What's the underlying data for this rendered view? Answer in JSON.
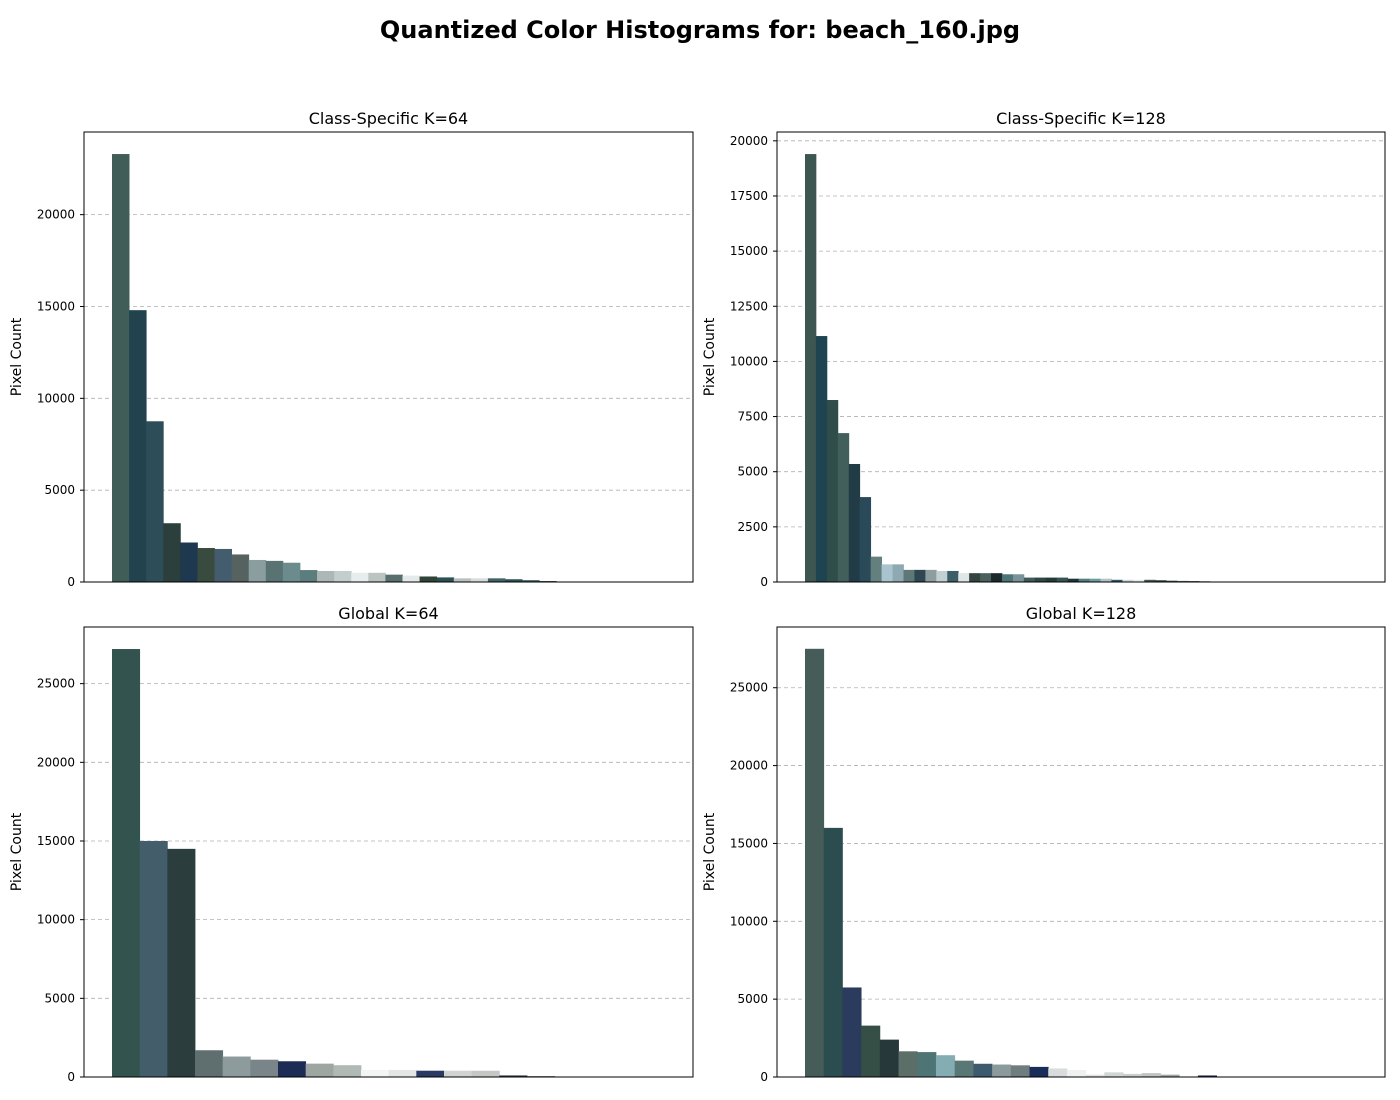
{
  "title": "Quantized Color Histograms for: beach_160.jpg",
  "chart_data": [
    {
      "type": "bar",
      "title": "Class-Specific K=64",
      "ylabel": "Pixel Count",
      "xlabel": "",
      "ylim": [
        0,
        24500
      ],
      "yticks": [
        0,
        5000,
        10000,
        15000,
        20000
      ],
      "grid": "y-dashed",
      "x_slots": 34,
      "values": [
        23300,
        14800,
        8750,
        3200,
        2150,
        1850,
        1800,
        1500,
        1200,
        1150,
        1050,
        650,
        600,
        600,
        500,
        500,
        400,
        350,
        300,
        250,
        200,
        200,
        200,
        150,
        100,
        50
      ],
      "colors": [
        "#415d58",
        "#22434d",
        "#2d4e59",
        "#2b3f3c",
        "#1e3850",
        "#394a3f",
        "#445d6e",
        "#56625f",
        "#8a9d9f",
        "#587372",
        "#6c8b8d",
        "#5b7d7e",
        "#adb8b6",
        "#c2cecd",
        "#e7eced",
        "#bbc4c1",
        "#57706f",
        "#e4eaea",
        "#2f4338",
        "#2a4f55",
        "#b9c1c0",
        "#d4dcdc",
        "#416268",
        "#2b5052",
        "#385a5a",
        "#2c3c3a"
      ]
    },
    {
      "type": "bar",
      "title": "Class-Specific K=128",
      "ylabel": "Pixel Count",
      "xlabel": "",
      "ylim": [
        0,
        20400
      ],
      "yticks": [
        0,
        2500,
        5000,
        7500,
        10000,
        12500,
        15000,
        17500,
        20000
      ],
      "grid": "y-dashed",
      "x_slots": 53,
      "values": [
        19400,
        11150,
        8250,
        6750,
        5350,
        3850,
        1150,
        800,
        800,
        550,
        550,
        550,
        500,
        500,
        400,
        400,
        400,
        400,
        350,
        350,
        200,
        200,
        200,
        200,
        150,
        150,
        150,
        150,
        100,
        100,
        100,
        100,
        80,
        60,
        50,
        40,
        30,
        20
      ],
      "colors": [
        "#3d5652",
        "#1d4450",
        "#2f4d49",
        "#435f5b",
        "#213c46",
        "#2a4a5a",
        "#637f7e",
        "#a9c4cf",
        "#8fa9b2",
        "#5e7878",
        "#2f4752",
        "#8e9da0",
        "#c2d0d2",
        "#3b5f66",
        "#dfe6e8",
        "#34443f",
        "#49605e",
        "#1c2a2c",
        "#4d7478",
        "#7a9399",
        "#3e5a5a",
        "#2d4748",
        "#253a37",
        "#385352",
        "#203338",
        "#557e80",
        "#6a9ea2",
        "#b5c1c3",
        "#2c5a70",
        "#d0d8d8",
        "#e8eeee",
        "#44594f",
        "#2e3f3d",
        "#3a4b4e",
        "#50656a",
        "#2b3d42",
        "#1f2f33",
        "#36484a"
      ]
    },
    {
      "type": "bar",
      "title": "Global K=64",
      "ylabel": "Pixel Count",
      "xlabel": "",
      "ylim": [
        0,
        28600
      ],
      "yticks": [
        0,
        5000,
        10000,
        15000,
        20000,
        25000
      ],
      "grid": "y-dashed",
      "x_slots": 21,
      "values": [
        27200,
        15000,
        14500,
        1700,
        1300,
        1100,
        1000,
        850,
        750,
        450,
        450,
        400,
        400,
        400,
        100,
        50
      ],
      "colors": [
        "#33534e",
        "#435d6b",
        "#2b3e3d",
        "#5f6f6f",
        "#8e9b9c",
        "#798589",
        "#1c2c54",
        "#9ea6a2",
        "#b0b9b3",
        "#f3f5f4",
        "#e3e6e4",
        "#2a3a65",
        "#cfd3d1",
        "#c3c8c5",
        "#26384a",
        "#30445a"
      ]
    },
    {
      "type": "bar",
      "title": "Global K=128",
      "ylabel": "Pixel Count",
      "xlabel": "",
      "ylim": [
        0,
        28900
      ],
      "yticks": [
        0,
        5000,
        10000,
        15000,
        20000,
        25000
      ],
      "grid": "y-dashed",
      "x_slots": 31,
      "values": [
        27500,
        16000,
        5750,
        3300,
        2400,
        1650,
        1600,
        1400,
        1050,
        850,
        800,
        750,
        650,
        550,
        450,
        150,
        300,
        200,
        250,
        150,
        30,
        100
      ],
      "colors": [
        "#455c58",
        "#2c4d4f",
        "#2a3b5e",
        "#354e46",
        "#27383a",
        "#5b6e68",
        "#4f7476",
        "#83adb3",
        "#587775",
        "#3e5a6e",
        "#8a9a9d",
        "#6f7d7f",
        "#1a2d5a",
        "#d8dcdc",
        "#eef1f1",
        "#dfe3e3",
        "#d0d6d5",
        "#c8cfcd",
        "#bdc6c4",
        "#9aa7a6",
        "#5d6c70",
        "#1d2e4a"
      ]
    }
  ]
}
